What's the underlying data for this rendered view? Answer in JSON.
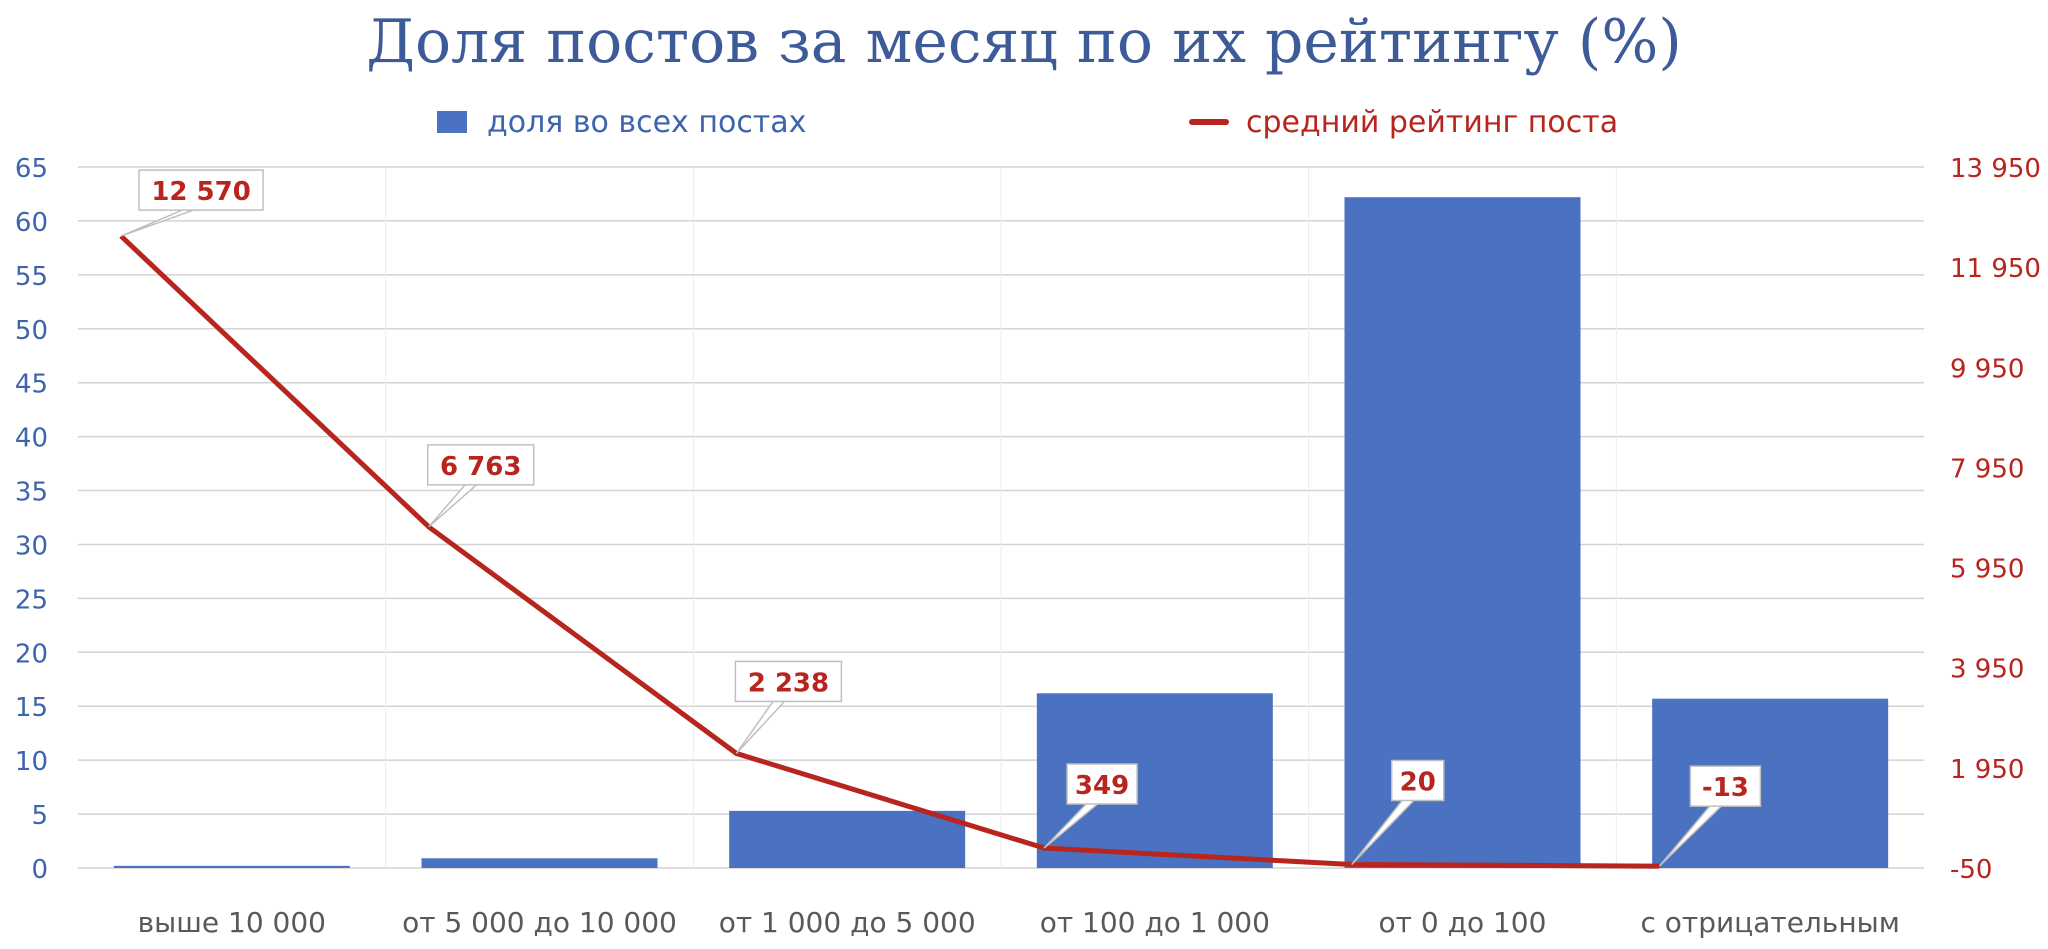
{
  "chart_data": {
    "type": "bar",
    "title": "Доля постов за месяц по их рейтингу (%)",
    "categories": [
      "выше 10 000",
      "от 5 000 до 10 000",
      "от 1 000 до 5 000",
      "от 100 до 1 000",
      "от 0 до 100",
      "с отрицательным"
    ],
    "series": [
      {
        "name": "доля во всех постах",
        "type": "bar",
        "axis": "left",
        "color": "#4a72c0",
        "values": [
          0.2,
          0.9,
          5.3,
          16.2,
          62.2,
          15.7
        ]
      },
      {
        "name": "средний рейтинг поста",
        "type": "line",
        "axis": "right",
        "color": "#b7251e",
        "values": [
          12570,
          6763,
          2238,
          349,
          20,
          -13
        ],
        "data_labels": [
          "12 570",
          "6 763",
          "2 238",
          "349",
          "20",
          "-13"
        ]
      }
    ],
    "left_axis": {
      "ylim": [
        0,
        65
      ],
      "ticks": [
        "0",
        "5",
        "10",
        "15",
        "20",
        "25",
        "30",
        "35",
        "40",
        "45",
        "50",
        "55",
        "60",
        "65"
      ],
      "color": "#3d64ad"
    },
    "right_axis": {
      "ylim": [
        -50,
        13950
      ],
      "ticks": [
        "-50",
        "1 950",
        "3 950",
        "5 950",
        "7 950",
        "9 950",
        "11 950",
        "13 950"
      ],
      "color": "#b7251e"
    },
    "grid": true,
    "legend_position": "top"
  }
}
